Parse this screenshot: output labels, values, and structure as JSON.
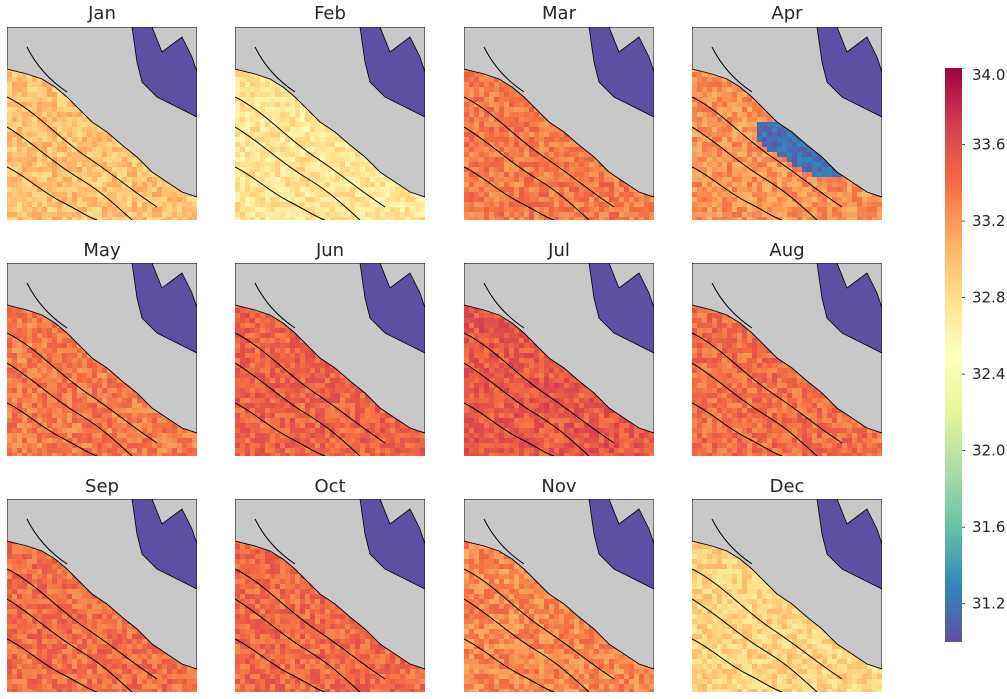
{
  "figure": {
    "panels": [
      {
        "month": "Jan"
      },
      {
        "month": "Feb"
      },
      {
        "month": "Mar"
      },
      {
        "month": "Apr"
      },
      {
        "month": "May"
      },
      {
        "month": "Jun"
      },
      {
        "month": "Jul"
      },
      {
        "month": "Aug"
      },
      {
        "month": "Sep"
      },
      {
        "month": "Oct"
      },
      {
        "month": "Nov"
      },
      {
        "month": "Dec"
      }
    ],
    "colorbar": {
      "min": 31.0,
      "max": 34.0,
      "ticks": [
        "31.2",
        "31.6",
        "32.0",
        "32.4",
        "32.8",
        "33.2",
        "33.6",
        "34.0"
      ],
      "colormap": "Spectral_r"
    },
    "colors": {
      "land": "#c8c8c8",
      "inland_water": "#5e4fa2",
      "contour": "#000000"
    }
  }
}
